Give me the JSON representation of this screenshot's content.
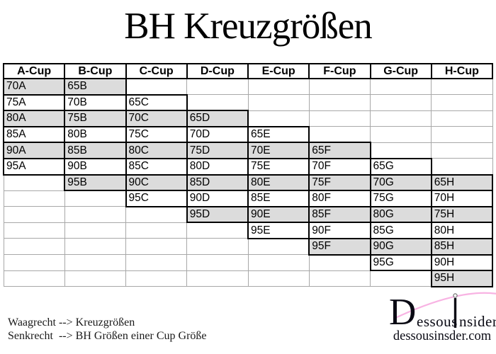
{
  "title": "BH Kreuzgrößen",
  "table": {
    "headers": [
      "A-Cup",
      "B-Cup",
      "C-Cup",
      "D-Cup",
      "E-Cup",
      "F-Cup",
      "G-Cup",
      "H-Cup"
    ],
    "rows": [
      {
        "shaded": true,
        "cells": [
          "70A",
          "65B",
          null,
          null,
          null,
          null,
          null,
          null
        ]
      },
      {
        "shaded": false,
        "cells": [
          "75A",
          "70B",
          "65C",
          null,
          null,
          null,
          null,
          null
        ]
      },
      {
        "shaded": true,
        "cells": [
          "80A",
          "75B",
          "70C",
          "65D",
          null,
          null,
          null,
          null
        ]
      },
      {
        "shaded": false,
        "cells": [
          "85A",
          "80B",
          "75C",
          "70D",
          "65E",
          null,
          null,
          null
        ]
      },
      {
        "shaded": true,
        "cells": [
          "90A",
          "85B",
          "80C",
          "75D",
          "70E",
          "65F",
          null,
          null
        ]
      },
      {
        "shaded": false,
        "cells": [
          "95A",
          "90B",
          "85C",
          "80D",
          "75E",
          "70F",
          "65G",
          null
        ]
      },
      {
        "shaded": true,
        "cells": [
          null,
          "95B",
          "90C",
          "85D",
          "80E",
          "75F",
          "70G",
          "65H"
        ]
      },
      {
        "shaded": false,
        "cells": [
          null,
          null,
          "95C",
          "90D",
          "85E",
          "80F",
          "75G",
          "70H"
        ]
      },
      {
        "shaded": true,
        "cells": [
          null,
          null,
          null,
          "95D",
          "90E",
          "85F",
          "80G",
          "75H"
        ]
      },
      {
        "shaded": false,
        "cells": [
          null,
          null,
          null,
          null,
          "95E",
          "90F",
          "85G",
          "80H"
        ]
      },
      {
        "shaded": true,
        "cells": [
          null,
          null,
          null,
          null,
          null,
          "95F",
          "90G",
          "85H"
        ]
      },
      {
        "shaded": false,
        "cells": [
          null,
          null,
          null,
          null,
          null,
          null,
          "95G",
          "90H"
        ]
      },
      {
        "shaded": true,
        "cells": [
          null,
          null,
          null,
          null,
          null,
          null,
          null,
          "95H"
        ]
      }
    ],
    "shaded_color": "#dcdcdc",
    "filled_border_color": "#000000",
    "empty_grid_color": "#a8a8a8"
  },
  "legend": {
    "line1": "Waagrecht --> Kreuzgrößen",
    "line2": "Senkrecht  --> BH Größen einer Cup Größe"
  },
  "logo": {
    "initial": "D",
    "word1_rest": "essous",
    "word2_rest": "nsider",
    "website": "dessousinsder.com",
    "arc_color": "#f8b3e3",
    "ink_color": "#0a0a14"
  }
}
